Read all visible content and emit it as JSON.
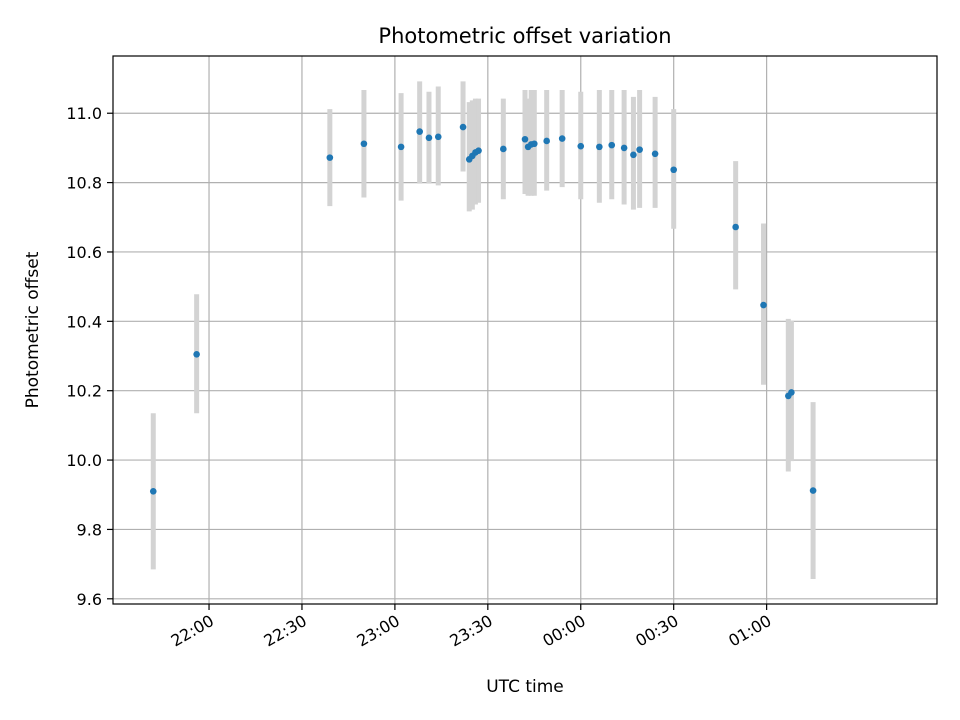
{
  "chart_data": {
    "type": "scatter",
    "title": "Photometric offset variation",
    "xlabel": "UTC time",
    "ylabel": "Photometric offset",
    "x_axis_kind": "time",
    "xlim": [
      "21:29",
      "01:55"
    ],
    "ylim": [
      9.585,
      11.165
    ],
    "x_ticks": [
      {
        "time": "22:00",
        "label": "22:00"
      },
      {
        "time": "22:30",
        "label": "22:30"
      },
      {
        "time": "23:00",
        "label": "23:00"
      },
      {
        "time": "23:30",
        "label": "23:30"
      },
      {
        "time": "00:00",
        "label": "00:00"
      },
      {
        "time": "00:30",
        "label": "00:30"
      },
      {
        "time": "01:00",
        "label": "01:00"
      }
    ],
    "y_ticks": [
      {
        "value": 9.6,
        "label": "9.6"
      },
      {
        "value": 9.8,
        "label": "9.8"
      },
      {
        "value": 10.0,
        "label": "10.0"
      },
      {
        "value": 10.2,
        "label": "10.2"
      },
      {
        "value": 10.4,
        "label": "10.4"
      },
      {
        "value": 10.6,
        "label": "10.6"
      },
      {
        "value": 10.8,
        "label": "10.8"
      },
      {
        "value": 11.0,
        "label": "11.0"
      }
    ],
    "grid": true,
    "marker_color": "#1f77b4",
    "errorbar_color": "#d3d3d3",
    "points": [
      {
        "time": "21:42",
        "y": 9.91,
        "lo": 9.685,
        "hi": 10.135
      },
      {
        "time": "21:56",
        "y": 10.305,
        "lo": 10.135,
        "hi": 10.478
      },
      {
        "time": "22:39",
        "y": 10.872,
        "lo": 10.732,
        "hi": 11.012
      },
      {
        "time": "22:50",
        "y": 10.912,
        "lo": 10.757,
        "hi": 11.067
      },
      {
        "time": "23:02",
        "y": 10.903,
        "lo": 10.748,
        "hi": 11.058
      },
      {
        "time": "23:08",
        "y": 10.947,
        "lo": 10.797,
        "hi": 11.092
      },
      {
        "time": "23:11",
        "y": 10.929,
        "lo": 10.797,
        "hi": 11.062
      },
      {
        "time": "23:14",
        "y": 10.932,
        "lo": 10.792,
        "hi": 11.077
      },
      {
        "time": "23:22",
        "y": 10.96,
        "lo": 10.832,
        "hi": 11.092
      },
      {
        "time": "23:24",
        "y": 10.867,
        "lo": 10.717,
        "hi": 11.032
      },
      {
        "time": "23:25",
        "y": 10.877,
        "lo": 10.722,
        "hi": 11.037
      },
      {
        "time": "23:26",
        "y": 10.887,
        "lo": 10.737,
        "hi": 11.042
      },
      {
        "time": "23:27",
        "y": 10.892,
        "lo": 10.742,
        "hi": 11.042
      },
      {
        "time": "23:35",
        "y": 10.897,
        "lo": 10.752,
        "hi": 11.042
      },
      {
        "time": "23:42",
        "y": 10.925,
        "lo": 10.767,
        "hi": 11.067
      },
      {
        "time": "23:43",
        "y": 10.903,
        "lo": 10.762,
        "hi": 11.042
      },
      {
        "time": "23:44",
        "y": 10.91,
        "lo": 10.762,
        "hi": 11.067
      },
      {
        "time": "23:45",
        "y": 10.912,
        "lo": 10.762,
        "hi": 11.067
      },
      {
        "time": "23:49",
        "y": 10.92,
        "lo": 10.777,
        "hi": 11.067
      },
      {
        "time": "23:54",
        "y": 10.927,
        "lo": 10.787,
        "hi": 11.067
      },
      {
        "time": "00:00",
        "y": 10.905,
        "lo": 10.752,
        "hi": 11.062
      },
      {
        "time": "00:06",
        "y": 10.903,
        "lo": 10.742,
        "hi": 11.067
      },
      {
        "time": "00:10",
        "y": 10.908,
        "lo": 10.752,
        "hi": 11.067
      },
      {
        "time": "00:14",
        "y": 10.9,
        "lo": 10.737,
        "hi": 11.067
      },
      {
        "time": "00:17",
        "y": 10.88,
        "lo": 10.722,
        "hi": 11.047
      },
      {
        "time": "00:19",
        "y": 10.895,
        "lo": 10.727,
        "hi": 11.067
      },
      {
        "time": "00:24",
        "y": 10.883,
        "lo": 10.727,
        "hi": 11.047
      },
      {
        "time": "00:30",
        "y": 10.837,
        "lo": 10.667,
        "hi": 11.012
      },
      {
        "time": "00:50",
        "y": 10.672,
        "lo": 10.492,
        "hi": 10.862
      },
      {
        "time": "00:59",
        "y": 10.447,
        "lo": 10.217,
        "hi": 10.682
      },
      {
        "time": "01:07",
        "y": 10.185,
        "lo": 9.967,
        "hi": 10.407
      },
      {
        "time": "01:08",
        "y": 10.195,
        "lo": 9.997,
        "hi": 10.402
      },
      {
        "time": "01:15",
        "y": 9.912,
        "lo": 9.657,
        "hi": 10.167
      }
    ]
  }
}
